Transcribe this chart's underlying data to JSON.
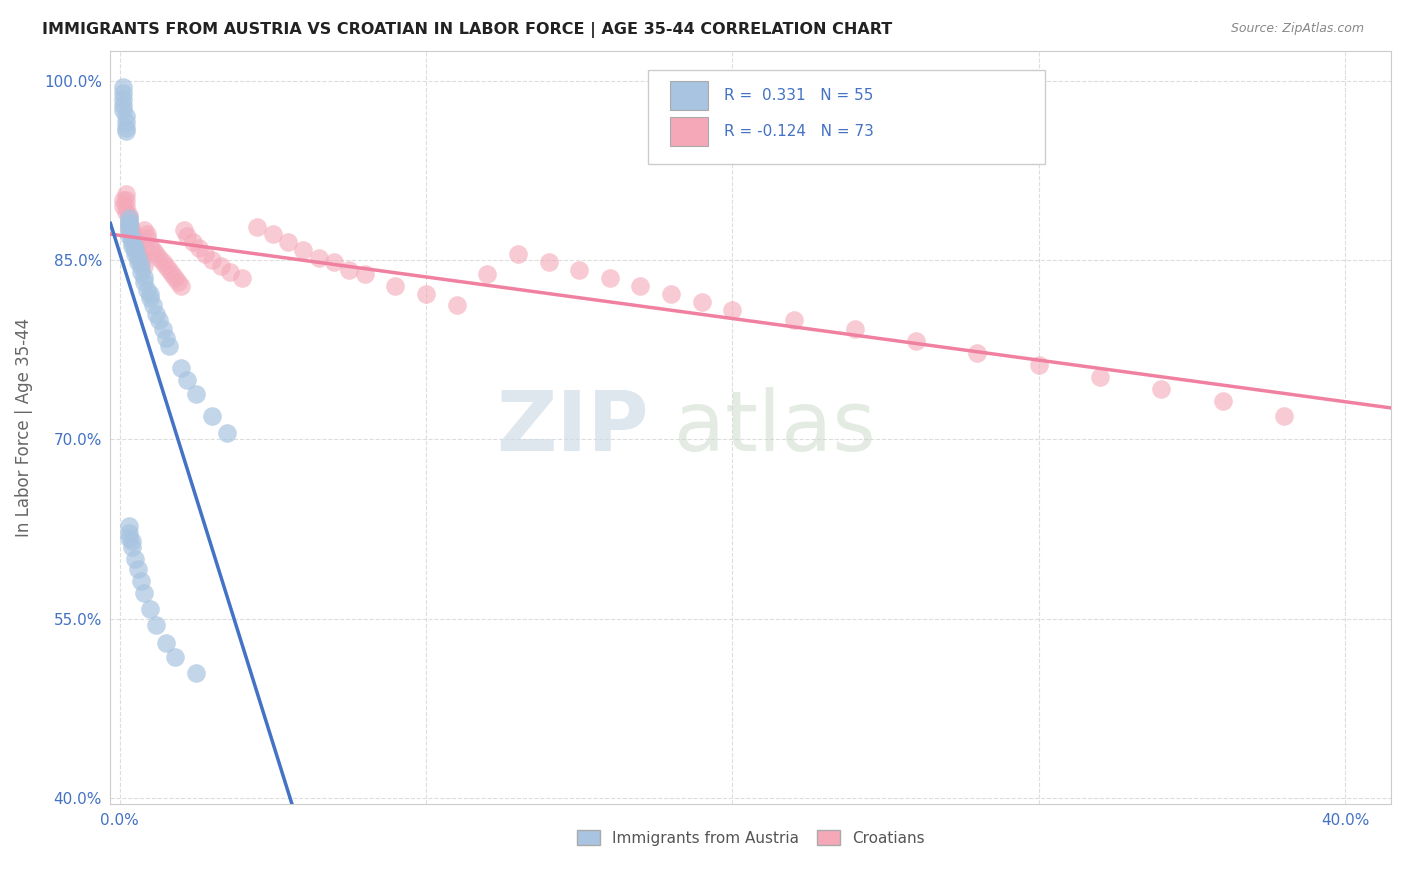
{
  "title": "IMMIGRANTS FROM AUSTRIA VS CROATIAN IN LABOR FORCE | AGE 35-44 CORRELATION CHART",
  "source": "Source: ZipAtlas.com",
  "ylabel": "In Labor Force | Age 35-44",
  "xlim": [
    -0.003,
    0.415
  ],
  "ylim": [
    0.395,
    1.025
  ],
  "xticks": [
    0.0,
    0.1,
    0.2,
    0.3,
    0.4
  ],
  "xticklabels": [
    "0.0%",
    "",
    "",
    "",
    "40.0%"
  ],
  "yticks": [
    0.4,
    0.55,
    0.7,
    0.85,
    1.0
  ],
  "yticklabels": [
    "40.0%",
    "55.0%",
    "70.0%",
    "85.0%",
    "100.0%"
  ],
  "grid_color": "#dddddd",
  "background_color": "#ffffff",
  "austria_color": "#a8c4e0",
  "croatian_color": "#f4a8b8",
  "austria_line_color": "#4472c4",
  "croatian_line_color": "#f080a0",
  "legend_R_austria": "0.331",
  "legend_N_austria": "55",
  "legend_R_croatian": "-0.124",
  "legend_N_croatian": "73",
  "austria_x": [
    0.001,
    0.001,
    0.001,
    0.001,
    0.001,
    0.002,
    0.002,
    0.002,
    0.002,
    0.003,
    0.003,
    0.003,
    0.003,
    0.003,
    0.003,
    0.004,
    0.004,
    0.004,
    0.005,
    0.005,
    0.005,
    0.006,
    0.006,
    0.007,
    0.007,
    0.008,
    0.008,
    0.009,
    0.01,
    0.01,
    0.011,
    0.012,
    0.013,
    0.014,
    0.015,
    0.016,
    0.02,
    0.022,
    0.025,
    0.03,
    0.035,
    0.003,
    0.003,
    0.003,
    0.004,
    0.004,
    0.005,
    0.006,
    0.007,
    0.008,
    0.01,
    0.012,
    0.015,
    0.018,
    0.025
  ],
  "austria_y": [
    0.995,
    0.99,
    0.985,
    0.98,
    0.975,
    0.97,
    0.965,
    0.96,
    0.958,
    0.87,
    0.875,
    0.878,
    0.88,
    0.882,
    0.885,
    0.862,
    0.865,
    0.868,
    0.855,
    0.858,
    0.86,
    0.848,
    0.852,
    0.84,
    0.845,
    0.832,
    0.836,
    0.825,
    0.818,
    0.822,
    0.812,
    0.805,
    0.8,
    0.792,
    0.785,
    0.778,
    0.76,
    0.75,
    0.738,
    0.72,
    0.705,
    0.618,
    0.622,
    0.628,
    0.61,
    0.615,
    0.6,
    0.592,
    0.582,
    0.572,
    0.558,
    0.545,
    0.53,
    0.518,
    0.505
  ],
  "croatian_x": [
    0.001,
    0.001,
    0.002,
    0.002,
    0.002,
    0.002,
    0.003,
    0.003,
    0.003,
    0.003,
    0.004,
    0.004,
    0.004,
    0.005,
    0.005,
    0.005,
    0.006,
    0.006,
    0.007,
    0.007,
    0.008,
    0.008,
    0.009,
    0.009,
    0.01,
    0.011,
    0.012,
    0.013,
    0.014,
    0.015,
    0.016,
    0.017,
    0.018,
    0.019,
    0.02,
    0.021,
    0.022,
    0.024,
    0.026,
    0.028,
    0.03,
    0.033,
    0.036,
    0.04,
    0.045,
    0.05,
    0.055,
    0.06,
    0.065,
    0.07,
    0.075,
    0.08,
    0.09,
    0.1,
    0.11,
    0.12,
    0.13,
    0.14,
    0.15,
    0.16,
    0.17,
    0.18,
    0.19,
    0.2,
    0.22,
    0.24,
    0.26,
    0.28,
    0.3,
    0.32,
    0.34,
    0.36,
    0.38
  ],
  "croatian_y": [
    0.9,
    0.895,
    0.905,
    0.9,
    0.895,
    0.89,
    0.888,
    0.885,
    0.882,
    0.878,
    0.875,
    0.872,
    0.87,
    0.868,
    0.865,
    0.862,
    0.858,
    0.855,
    0.852,
    0.848,
    0.845,
    0.875,
    0.872,
    0.868,
    0.862,
    0.858,
    0.855,
    0.852,
    0.848,
    0.845,
    0.842,
    0.838,
    0.835,
    0.832,
    0.828,
    0.875,
    0.87,
    0.865,
    0.86,
    0.855,
    0.85,
    0.845,
    0.84,
    0.835,
    0.878,
    0.872,
    0.865,
    0.858,
    0.852,
    0.848,
    0.842,
    0.838,
    0.828,
    0.822,
    0.812,
    0.838,
    0.855,
    0.848,
    0.842,
    0.835,
    0.828,
    0.822,
    0.815,
    0.808,
    0.8,
    0.792,
    0.782,
    0.772,
    0.762,
    0.752,
    0.742,
    0.732,
    0.72
  ]
}
